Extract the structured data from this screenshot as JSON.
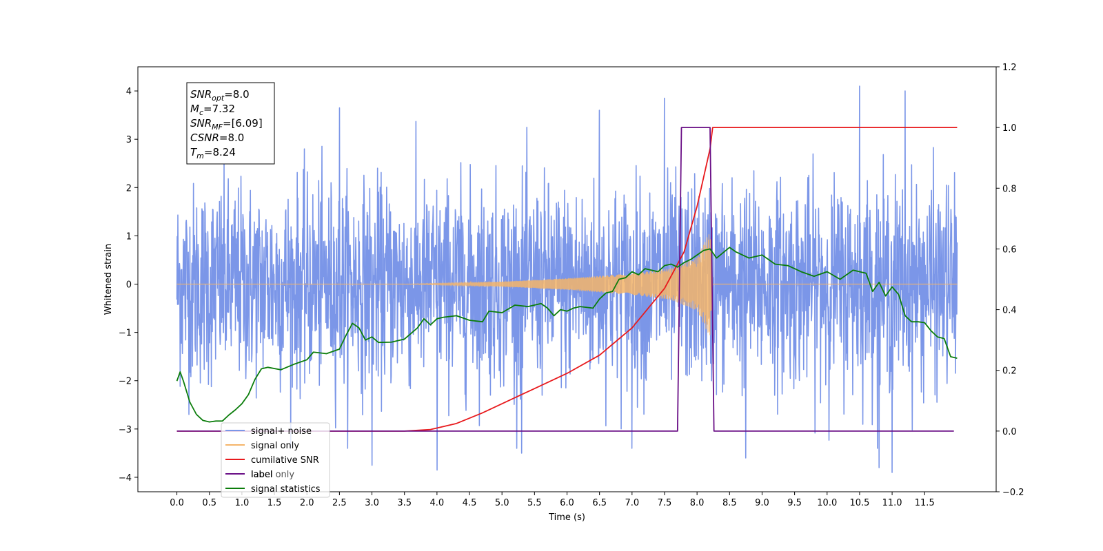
{
  "chart_data": {
    "type": "line",
    "title": "",
    "xlabel": "Time (s)",
    "ylabel": "Whitened strain",
    "y2label": "",
    "xlim": [
      -0.6,
      12.6
    ],
    "ylim": [
      -4.3,
      4.5
    ],
    "y2lim": [
      -0.2,
      1.2
    ],
    "x_ticks": [
      0.0,
      0.5,
      1.0,
      1.5,
      2.0,
      2.5,
      3.0,
      3.5,
      4.0,
      4.5,
      5.0,
      5.5,
      6.0,
      6.5,
      7.0,
      7.5,
      8.0,
      8.5,
      9.0,
      9.5,
      10.0,
      10.5,
      11.0,
      11.5
    ],
    "x_tick_labels": [
      "0.0",
      "0.5",
      "1.0",
      "1.5",
      "2.0",
      "2.5",
      "3.0",
      "3.5",
      "4.0",
      "4.5",
      "5.0",
      "5.5",
      "6.0",
      "6.5",
      "7.0",
      "7.5",
      "8.0",
      "8.5",
      "9.0",
      "9.5",
      "10.0",
      "10.5",
      "11.0",
      "11.5"
    ],
    "y_ticks": [
      -4,
      -3,
      -2,
      -1,
      0,
      1,
      2,
      3,
      4
    ],
    "y_tick_labels": [
      "−4",
      "−3",
      "−2",
      "−1",
      "0",
      "1",
      "2",
      "3",
      "4"
    ],
    "y2_ticks": [
      -0.2,
      0.0,
      0.2,
      0.4,
      0.6,
      0.8,
      1.0,
      1.2
    ],
    "y2_tick_labels": [
      "−0.2",
      "0.0",
      "0.2",
      "0.4",
      "0.6",
      "0.8",
      "1.0",
      "1.2"
    ],
    "grid": false,
    "legend_position": "lower-left",
    "info_box": {
      "lines": [
        {
          "base": "SNR",
          "sub": "opt",
          "value": "=8.0"
        },
        {
          "base": "M",
          "sub": "c",
          "value": "=7.32"
        },
        {
          "base": "SNR",
          "sub": "MF",
          "value": "=[6.09]"
        },
        {
          "base": "CSNR",
          "sub": "",
          "value": "=8.0"
        },
        {
          "base": "T",
          "sub": "m",
          "value": "=8.24"
        }
      ]
    },
    "series": [
      {
        "name": "signal+ noise",
        "axis": "left",
        "color": "#7b96e8",
        "style": "noise",
        "x_range": [
          0.0,
          12.0
        ],
        "typical_range": [
          -1.6,
          1.6
        ],
        "peaks": [
          {
            "x": 10.5,
            "y": 4.1
          },
          {
            "x": 7.5,
            "y": 3.85
          },
          {
            "x": 11.2,
            "y": 4.0
          },
          {
            "x": 2.5,
            "y": 3.65
          },
          {
            "x": 6.5,
            "y": 3.6
          },
          {
            "x": 4.0,
            "y": -3.85
          },
          {
            "x": 11.0,
            "y": -3.9
          },
          {
            "x": 3.0,
            "y": -3.75
          },
          {
            "x": 8.75,
            "y": -3.6
          },
          {
            "x": 10.8,
            "y": -3.8
          },
          {
            "x": 7.0,
            "y": -3.4
          },
          {
            "x": 5.3,
            "y": -3.5
          }
        ]
      },
      {
        "name": "signal only",
        "axis": "left",
        "color": "#f5b56a",
        "style": "chirp",
        "x_range": [
          0.0,
          12.0
        ],
        "chirp_start": 3.5,
        "chirp_end": 8.24,
        "envelope": [
          {
            "x": 3.5,
            "a": 0.0
          },
          {
            "x": 5.0,
            "a": 0.05
          },
          {
            "x": 6.0,
            "a": 0.12
          },
          {
            "x": 7.0,
            "a": 0.22
          },
          {
            "x": 7.6,
            "a": 0.33
          },
          {
            "x": 8.0,
            "a": 0.55
          },
          {
            "x": 8.2,
            "a": 1.1
          },
          {
            "x": 8.24,
            "a": 0.0
          }
        ]
      },
      {
        "name": "cumilative SNR",
        "axis": "right",
        "color": "#e8191c",
        "style": "line",
        "points": [
          [
            0.0,
            0.0
          ],
          [
            3.5,
            0.0
          ],
          [
            3.9,
            0.005
          ],
          [
            4.3,
            0.025
          ],
          [
            4.7,
            0.06
          ],
          [
            5.0,
            0.09
          ],
          [
            5.5,
            0.14
          ],
          [
            6.0,
            0.19
          ],
          [
            6.5,
            0.25
          ],
          [
            7.0,
            0.34
          ],
          [
            7.5,
            0.47
          ],
          [
            7.8,
            0.59
          ],
          [
            8.0,
            0.74
          ],
          [
            8.2,
            0.93
          ],
          [
            8.24,
            1.0
          ],
          [
            12.0,
            1.0
          ]
        ]
      },
      {
        "name": "label",
        "axis": "right",
        "color": "#6a0f86",
        "style": "line",
        "points": [
          [
            0.0,
            0.0
          ],
          [
            7.7,
            0.0
          ],
          [
            7.76,
            1.0
          ],
          [
            8.2,
            1.0
          ],
          [
            8.26,
            0.0
          ],
          [
            11.95,
            0.0
          ]
        ]
      },
      {
        "name": "signal statistics",
        "axis": "right",
        "color": "#0b7d0b",
        "style": "line",
        "points": [
          [
            0.0,
            0.165
          ],
          [
            0.05,
            0.195
          ],
          [
            0.1,
            0.165
          ],
          [
            0.2,
            0.095
          ],
          [
            0.3,
            0.055
          ],
          [
            0.4,
            0.035
          ],
          [
            0.5,
            0.03
          ],
          [
            0.6,
            0.033
          ],
          [
            0.7,
            0.033
          ],
          [
            0.8,
            0.053
          ],
          [
            0.9,
            0.07
          ],
          [
            1.0,
            0.09
          ],
          [
            1.1,
            0.12
          ],
          [
            1.2,
            0.17
          ],
          [
            1.3,
            0.205
          ],
          [
            1.4,
            0.21
          ],
          [
            1.6,
            0.202
          ],
          [
            1.8,
            0.22
          ],
          [
            2.0,
            0.235
          ],
          [
            2.1,
            0.26
          ],
          [
            2.3,
            0.255
          ],
          [
            2.5,
            0.27
          ],
          [
            2.6,
            0.315
          ],
          [
            2.7,
            0.355
          ],
          [
            2.8,
            0.34
          ],
          [
            2.9,
            0.3
          ],
          [
            3.0,
            0.31
          ],
          [
            3.1,
            0.292
          ],
          [
            3.3,
            0.293
          ],
          [
            3.5,
            0.303
          ],
          [
            3.7,
            0.34
          ],
          [
            3.8,
            0.37
          ],
          [
            3.9,
            0.35
          ],
          [
            4.0,
            0.37
          ],
          [
            4.1,
            0.375
          ],
          [
            4.3,
            0.38
          ],
          [
            4.5,
            0.365
          ],
          [
            4.7,
            0.36
          ],
          [
            4.8,
            0.395
          ],
          [
            5.0,
            0.39
          ],
          [
            5.2,
            0.415
          ],
          [
            5.4,
            0.41
          ],
          [
            5.6,
            0.42
          ],
          [
            5.7,
            0.405
          ],
          [
            5.8,
            0.38
          ],
          [
            5.9,
            0.4
          ],
          [
            6.0,
            0.395
          ],
          [
            6.1,
            0.405
          ],
          [
            6.2,
            0.41
          ],
          [
            6.4,
            0.405
          ],
          [
            6.5,
            0.435
          ],
          [
            6.6,
            0.455
          ],
          [
            6.7,
            0.46
          ],
          [
            6.8,
            0.5
          ],
          [
            6.9,
            0.505
          ],
          [
            7.0,
            0.525
          ],
          [
            7.1,
            0.515
          ],
          [
            7.2,
            0.535
          ],
          [
            7.4,
            0.525
          ],
          [
            7.5,
            0.545
          ],
          [
            7.6,
            0.55
          ],
          [
            7.7,
            0.54
          ],
          [
            7.8,
            0.555
          ],
          [
            7.9,
            0.565
          ],
          [
            8.0,
            0.58
          ],
          [
            8.1,
            0.595
          ],
          [
            8.2,
            0.6
          ],
          [
            8.3,
            0.57
          ],
          [
            8.5,
            0.605
          ],
          [
            8.6,
            0.59
          ],
          [
            8.8,
            0.57
          ],
          [
            9.0,
            0.58
          ],
          [
            9.2,
            0.55
          ],
          [
            9.4,
            0.545
          ],
          [
            9.6,
            0.525
          ],
          [
            9.8,
            0.51
          ],
          [
            10.0,
            0.525
          ],
          [
            10.2,
            0.5
          ],
          [
            10.4,
            0.53
          ],
          [
            10.6,
            0.52
          ],
          [
            10.7,
            0.46
          ],
          [
            10.8,
            0.49
          ],
          [
            10.9,
            0.445
          ],
          [
            11.0,
            0.475
          ],
          [
            11.1,
            0.45
          ],
          [
            11.2,
            0.38
          ],
          [
            11.3,
            0.36
          ],
          [
            11.4,
            0.36
          ],
          [
            11.5,
            0.357
          ],
          [
            11.6,
            0.33
          ],
          [
            11.7,
            0.31
          ],
          [
            11.8,
            0.305
          ],
          [
            11.9,
            0.245
          ],
          [
            12.0,
            0.24
          ]
        ]
      }
    ],
    "legend": [
      {
        "label": "signal+ noise",
        "color": "#7b96e8"
      },
      {
        "label": "signal only",
        "color": "#f5b56a"
      },
      {
        "label": "cumilative SNR",
        "color": "#e8191c"
      },
      {
        "label": "label",
        "color": "#6a0f86"
      },
      {
        "label": "label only",
        "color": "#c9c9c9"
      },
      {
        "label": "signal statistics",
        "color": "#0b7d0b"
      }
    ]
  }
}
